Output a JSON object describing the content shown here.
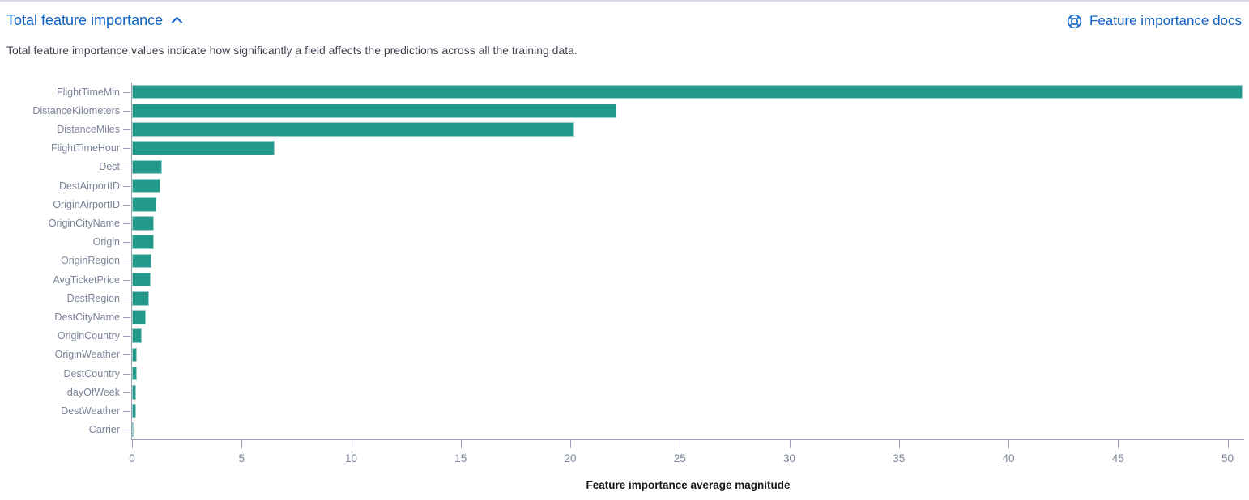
{
  "header": {
    "title": "Total feature importance",
    "docs_link_label": "Feature importance docs"
  },
  "icons": {
    "collapse": "chevron-up-icon",
    "docs": "life-ring-icon"
  },
  "description": "Total feature importance values indicate how significantly a field affects the predictions across all the training data.",
  "colors": {
    "bar": "#23998b",
    "link": "#0d62c6",
    "axis_line": "#98a1b5",
    "tick_label": "#7b8499",
    "axis_title_text": "#17191e",
    "description_text": "#3f4450",
    "top_rule": "#d6dbe8"
  },
  "chart_data": {
    "type": "bar",
    "orientation": "horizontal",
    "title": "",
    "xlabel": "Feature importance average magnitude",
    "ylabel": "",
    "categories": [
      "FlightTimeMin",
      "DistanceKilometers",
      "DistanceMiles",
      "FlightTimeHour",
      "Dest",
      "DestAirportID",
      "OriginAirportID",
      "OriginCityName",
      "Origin",
      "OriginRegion",
      "AvgTicketPrice",
      "DestRegion",
      "DestCityName",
      "OriginCountry",
      "OriginWeather",
      "DestCountry",
      "dayOfWeek",
      "DestWeather",
      "Carrier"
    ],
    "values": [
      50.7,
      22.1,
      20.2,
      6.5,
      1.35,
      1.28,
      1.12,
      1.0,
      0.98,
      0.9,
      0.85,
      0.76,
      0.63,
      0.44,
      0.22,
      0.21,
      0.2,
      0.17,
      0.05
    ],
    "xlim": [
      0,
      50.8
    ],
    "xticks": [
      0,
      5,
      10,
      15,
      20,
      25,
      30,
      35,
      40,
      45,
      50
    ],
    "grid": false,
    "legend": "none"
  }
}
